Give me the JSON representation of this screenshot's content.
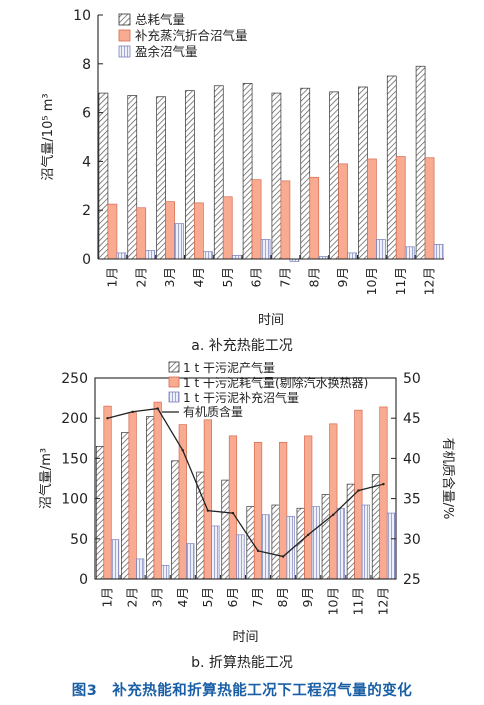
{
  "chart_data": [
    {
      "type": "bar",
      "subcaption": "a. 补充热能工况",
      "categories": [
        "1月",
        "2月",
        "3月",
        "4月",
        "5月",
        "6月",
        "7月",
        "8月",
        "9月",
        "10月",
        "11月",
        "12月"
      ],
      "series": [
        {
          "name": "总耗气量",
          "values": [
            6.8,
            6.7,
            6.65,
            6.9,
            7.1,
            7.2,
            6.8,
            7.0,
            6.85,
            7.05,
            7.5,
            7.9
          ]
        },
        {
          "name": "补充蒸汽折合沼气量",
          "values": [
            2.25,
            2.1,
            2.35,
            2.3,
            2.55,
            3.25,
            3.2,
            3.35,
            3.9,
            4.1,
            4.2,
            4.15
          ]
        },
        {
          "name": "盈余沼气量",
          "values": [
            0.25,
            0.35,
            1.45,
            0.3,
            0.15,
            0.8,
            -0.1,
            0.1,
            0.25,
            0.8,
            0.5,
            0.6
          ]
        }
      ],
      "xlabel": "时间",
      "ylabel": "沼气量/10⁵ m³",
      "ylim": [
        0,
        10
      ],
      "yticks": [
        0,
        2,
        4,
        6,
        8,
        10
      ],
      "legend": "top-left"
    },
    {
      "type": "bar",
      "subcaption": "b. 折算热能工况",
      "categories": [
        "1月",
        "2月",
        "3月",
        "4月",
        "5月",
        "6月",
        "7月",
        "8月",
        "9月",
        "10月",
        "11月",
        "12月"
      ],
      "series": [
        {
          "name": "1 t 干污泥产气量",
          "axis": "left",
          "values": [
            165,
            182,
            202,
            147,
            133,
            123,
            90,
            92,
            88,
            105,
            118,
            130
          ]
        },
        {
          "name": "1 t 干污泥耗气量(剔除汽水换热器)",
          "axis": "left",
          "values": [
            215,
            207,
            220,
            192,
            198,
            178,
            170,
            170,
            178,
            193,
            210,
            214
          ]
        },
        {
          "name": "1 t 干污泥补充沼气量",
          "axis": "left",
          "values": [
            49,
            25,
            17,
            44,
            66,
            55,
            80,
            78,
            90,
            88,
            92,
            82
          ]
        },
        {
          "name": "有机质含量",
          "axis": "right",
          "type": "line",
          "values": [
            45,
            45.8,
            46.2,
            41,
            33.5,
            33.2,
            28.5,
            27.8,
            30.5,
            33,
            36,
            36.8
          ]
        }
      ],
      "xlabel": "时间",
      "ylabel": "沼气量/m³",
      "ylabel_right": "有机质含量/%",
      "ylim": [
        0,
        250
      ],
      "ylim_right": [
        25,
        50
      ],
      "yticks": [
        0,
        50,
        100,
        150,
        200,
        250
      ],
      "yticks_right": [
        25,
        30,
        35,
        40,
        45,
        50
      ],
      "legend": "top"
    }
  ],
  "colors": {
    "hatch": "#555555",
    "salmon": "#f8ab91",
    "salmon_stroke": "#d56b50",
    "blue_light": "#e8eaf6",
    "blue_line": "#8f95c8",
    "caption_blue": "#1a5fa6"
  },
  "figure_caption": "图3　补充热能和折算热能工况下工程沼气量的变化"
}
